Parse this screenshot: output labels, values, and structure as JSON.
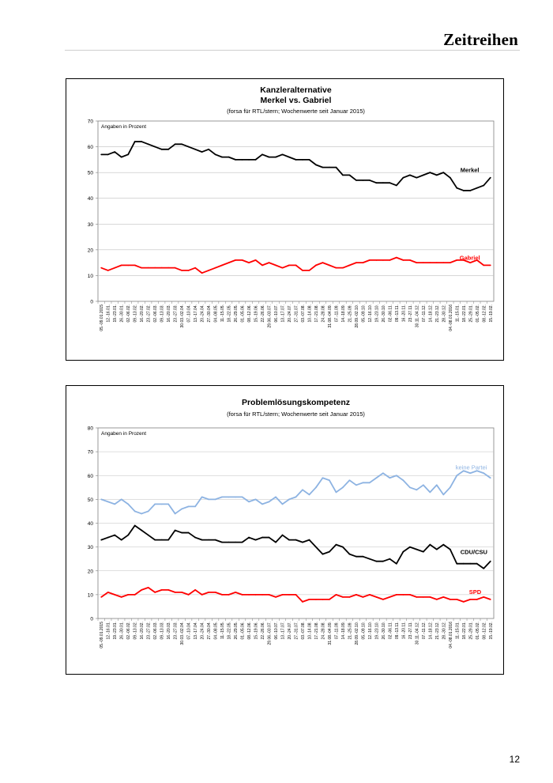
{
  "page": {
    "header_title": "Zeitreihen",
    "page_number": "12"
  },
  "chart_data": [
    {
      "type": "line",
      "title_line1": "Kanzleralternative",
      "title_line2": "Merkel vs. Gabriel",
      "subtitle": "(forsa für RTL/stern; Wochenwerte seit Januar 2015)",
      "note": "Angaben in Prozent",
      "ylim": [
        0,
        70
      ],
      "yticks": [
        0,
        10,
        20,
        30,
        40,
        50,
        60,
        70
      ],
      "categories": [
        "05.-09.01.2015",
        "12.-16.01.",
        "19.-23.01.",
        "26.-30.01.",
        "02.-06.02.",
        "09.-13.02.",
        "16.-20.02.",
        "23.-27.02.",
        "02.-06.03.",
        "09.-13.03.",
        "16.-20.03.",
        "23.-27.03.",
        "30.03.-02.04.",
        "07.-10.04.",
        "13.-17.04.",
        "20.-24.04.",
        "27.-30.04.",
        "04.-08.05.",
        "11.-15.05.",
        "18.-22.05.",
        "26.-29.05.",
        "01.-05.06.",
        "08.-12.06.",
        "15.-19.06.",
        "22.-26.06.",
        "29.06.-03.07.",
        "06.-10.07.",
        "13.-17.07.",
        "20.-24.07.",
        "27.-31.07.",
        "03.-07.08.",
        "10.-14.08.",
        "17.-21.08.",
        "24.-28.08.",
        "31.08.-04.09.",
        "07.-11.09.",
        "14.-18.09.",
        "21.-25.09.",
        "28.09.-02.10.",
        "05.-09.10.",
        "12.-16.10.",
        "19.-23.10.",
        "26.-30.10.",
        "02.-06.11.",
        "09.-13.11.",
        "16.-20.11.",
        "23.-27.11.",
        "30.11.-04.12.",
        "07.-11.12.",
        "14.-18.12.",
        "21.-23.12.",
        "28.-30.12.",
        "04.-08.01.2016",
        "11.-15.01.",
        "18.-22.01.",
        "25.-29.01.",
        "01.-05.02.",
        "08.-12.02.",
        "15.-19.02."
      ],
      "series": [
        {
          "name": "Merkel",
          "color": "#000000",
          "values": [
            57,
            57,
            58,
            56,
            57,
            62,
            62,
            61,
            60,
            59,
            59,
            61,
            61,
            60,
            59,
            58,
            59,
            57,
            56,
            56,
            55,
            55,
            55,
            55,
            57,
            56,
            56,
            57,
            56,
            55,
            55,
            55,
            53,
            52,
            52,
            52,
            49,
            49,
            47,
            47,
            47,
            46,
            46,
            46,
            45,
            48,
            49,
            48,
            49,
            50,
            49,
            50,
            48,
            44,
            43,
            43,
            44,
            45,
            48
          ]
        },
        {
          "name": "Gabriel",
          "color": "#ff0000",
          "values": [
            13,
            12,
            13,
            14,
            14,
            14,
            13,
            13,
            13,
            13,
            13,
            13,
            12,
            12,
            13,
            11,
            12,
            13,
            14,
            15,
            16,
            16,
            15,
            16,
            14,
            15,
            14,
            13,
            14,
            14,
            12,
            12,
            14,
            15,
            14,
            13,
            13,
            14,
            15,
            15,
            16,
            16,
            16,
            16,
            17,
            16,
            16,
            15,
            15,
            15,
            15,
            15,
            15,
            16,
            16,
            15,
            16,
            14,
            14
          ]
        }
      ]
    },
    {
      "type": "line",
      "title_line1": "Problemlösungskompetenz",
      "subtitle": "(forsa für RTL/stern; Wochenwerte seit Januar 2015)",
      "note": "Angaben in Prozent",
      "ylim": [
        0,
        80
      ],
      "yticks": [
        0,
        10,
        20,
        30,
        40,
        50,
        60,
        70,
        80
      ],
      "categories": [
        "05.-09.01.2015",
        "12.-16.01.",
        "19.-23.01.",
        "26.-30.01.",
        "02.-06.02.",
        "09.-13.02.",
        "16.-20.02.",
        "23.-27.02.",
        "02.-06.03.",
        "09.-13.03.",
        "16.-20.03.",
        "23.-27.03.",
        "30.03.-02.04.",
        "07.-10.04.",
        "13.-17.04.",
        "20.-24.04.",
        "27.-30.04.",
        "04.-08.05.",
        "11.-15.05.",
        "18.-22.05.",
        "26.-29.05.",
        "01.-05.06.",
        "08.-12.06.",
        "15.-19.06.",
        "22.-26.06.",
        "29.06.-03.07.",
        "06.-10.07.",
        "13.-17.07.",
        "20.-24.07.",
        "27.-31.07.",
        "03.-07.08.",
        "10.-14.08.",
        "17.-21.08.",
        "24.-28.08.",
        "31.08.-04.09.",
        "07.-11.09.",
        "14.-18.09.",
        "21.-25.09.",
        "28.09.-02.10.",
        "05.-09.10.",
        "12.-16.10.",
        "19.-23.10.",
        "26.-30.10.",
        "02.-06.11.",
        "09.-13.11.",
        "16.-20.11.",
        "23.-27.11.",
        "30.11.-04.12.",
        "07.-11.12.",
        "14.-18.12.",
        "21.-23.12.",
        "28.-30.12.",
        "04.-08.01.2016",
        "11.-15.01.",
        "18.-22.01.",
        "25.-29.01.",
        "01.-05.02.",
        "08.-12.02.",
        "15.-19.02."
      ],
      "series": [
        {
          "name": "keine Partei",
          "color": "#8db3e2",
          "values": [
            50,
            49,
            48,
            50,
            48,
            45,
            44,
            45,
            48,
            48,
            48,
            44,
            46,
            47,
            47,
            51,
            50,
            50,
            51,
            51,
            51,
            51,
            49,
            50,
            48,
            49,
            51,
            48,
            50,
            51,
            54,
            52,
            55,
            59,
            58,
            53,
            55,
            58,
            56,
            57,
            57,
            59,
            61,
            59,
            60,
            58,
            55,
            54,
            56,
            53,
            56,
            52,
            55,
            60,
            62,
            61,
            62,
            61,
            59
          ]
        },
        {
          "name": "CDU/CSU",
          "color": "#000000",
          "values": [
            33,
            34,
            35,
            33,
            35,
            39,
            37,
            35,
            33,
            33,
            33,
            37,
            36,
            36,
            34,
            33,
            33,
            33,
            32,
            32,
            32,
            32,
            34,
            33,
            34,
            34,
            32,
            35,
            33,
            33,
            32,
            33,
            30,
            27,
            28,
            31,
            30,
            27,
            26,
            26,
            25,
            24,
            24,
            25,
            23,
            28,
            30,
            29,
            28,
            31,
            29,
            31,
            29,
            23,
            23,
            23,
            23,
            21,
            24
          ]
        },
        {
          "name": "SPD",
          "color": "#ff0000",
          "values": [
            9,
            11,
            10,
            9,
            10,
            10,
            12,
            13,
            11,
            12,
            12,
            11,
            11,
            10,
            12,
            10,
            11,
            11,
            10,
            10,
            11,
            10,
            10,
            10,
            10,
            10,
            9,
            10,
            10,
            10,
            7,
            8,
            8,
            8,
            8,
            10,
            9,
            9,
            10,
            9,
            10,
            9,
            8,
            9,
            10,
            10,
            10,
            9,
            9,
            9,
            8,
            9,
            8,
            8,
            7,
            8,
            8,
            9,
            8
          ]
        }
      ]
    }
  ]
}
